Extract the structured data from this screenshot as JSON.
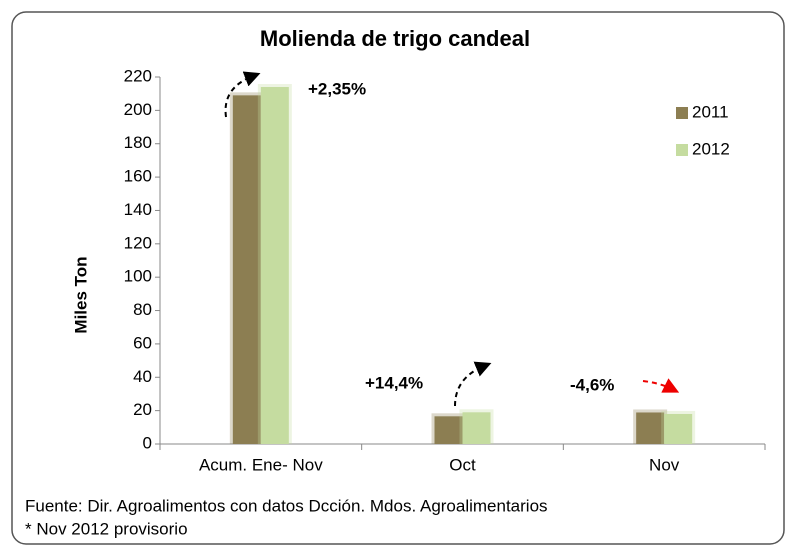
{
  "chart_data": {
    "type": "bar",
    "title": "Molienda de trigo candeal",
    "categories": [
      "Acum. Ene- Nov",
      "Oct",
      "Nov"
    ],
    "series": [
      {
        "name": "2011",
        "color": "#8c7e52",
        "values": [
          209,
          16.6,
          18.9
        ]
      },
      {
        "name": "2012",
        "color": "#c5dca0",
        "values": [
          214,
          19,
          18
        ]
      }
    ],
    "y_label": "Miles Ton",
    "ylim": [
      0,
      220
    ],
    "yticks": [
      0,
      20,
      40,
      60,
      80,
      100,
      120,
      140,
      160,
      180,
      200,
      220
    ],
    "legend": "upper right",
    "annotations": [
      "+2,35%",
      "+14,4%",
      "-4,6%"
    ],
    "footnotes": [
      "Fuente: Dir. Agroalimentos con datos Dcción. Mdos. Agroalimentarios",
      "* Nov 2012 provisorio"
    ]
  }
}
